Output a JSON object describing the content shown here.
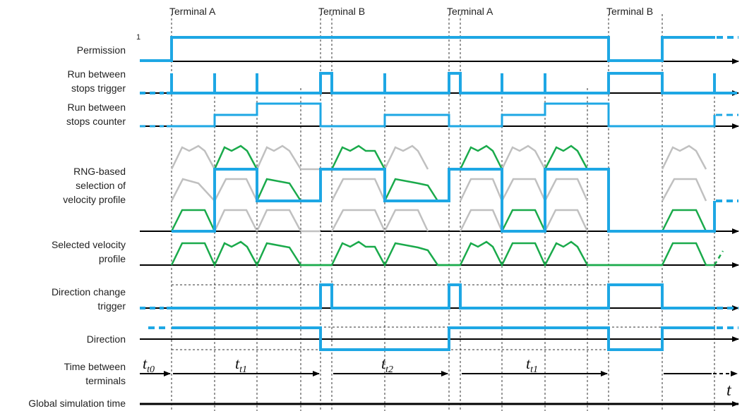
{
  "terminals": [
    "Terminal A",
    "Terminal B",
    "Terminal A",
    "Terminal B"
  ],
  "row_labels": {
    "permission": "Permission",
    "run_trigger": [
      "Run between",
      "stops trigger"
    ],
    "run_counter": [
      "Run between",
      "stops counter"
    ],
    "rng_selection": [
      "RNG-based",
      "selection of",
      "velocity profile"
    ],
    "selected_velocity": [
      "Selected velocity",
      "profile"
    ],
    "dir_change_trigger": [
      "Direction change",
      "trigger"
    ],
    "direction": "Direction",
    "time_between": [
      "Time between",
      "terminals"
    ],
    "global_time": "Global simulation time"
  },
  "permission_high_mark": "1",
  "intervals": [
    {
      "base": "t",
      "sub": "t0"
    },
    {
      "base": "t",
      "sub": "t1"
    },
    {
      "base": "t",
      "sub": "t2"
    },
    {
      "base": "t",
      "sub": "t1"
    }
  ],
  "axis_symbol": "t",
  "colors": {
    "signal": "#1ea7e4",
    "profile_selected": "#1aaa4b",
    "profile_unselected": "#c0c0c0",
    "axis": "#000000",
    "guide": "#333333"
  }
}
